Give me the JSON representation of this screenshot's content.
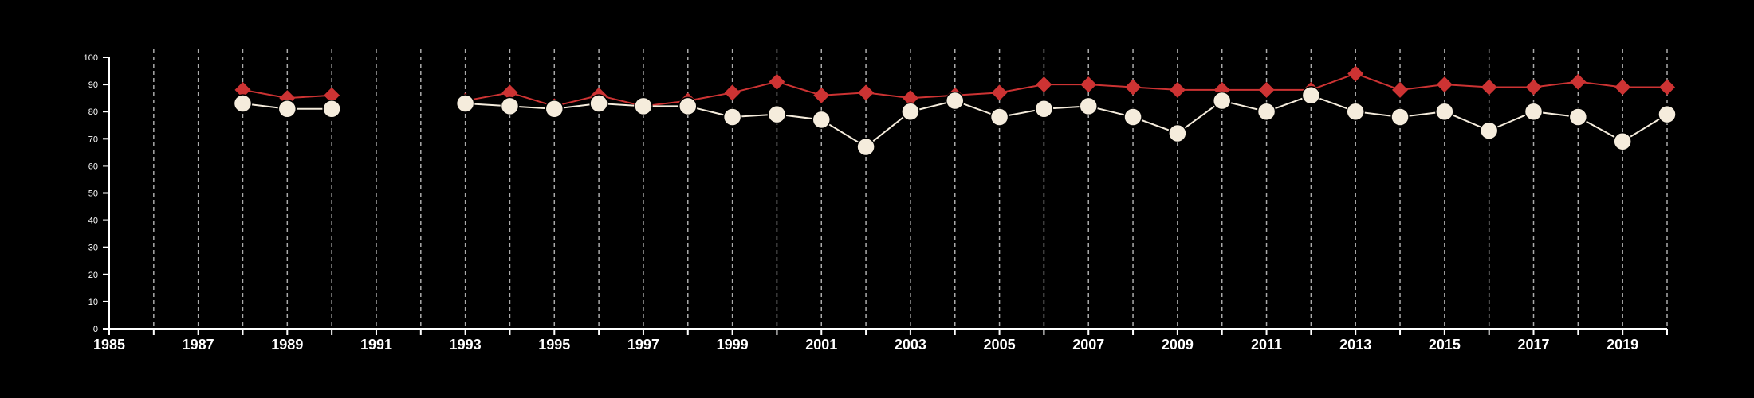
{
  "chart_data": {
    "type": "line",
    "title": "",
    "xlabel": "",
    "ylabel": "",
    "xlim": [
      1985,
      2020
    ],
    "ylim": [
      0,
      100
    ],
    "x_ticks": [
      "1985",
      "1987",
      "1989",
      "1991",
      "1993",
      "1995",
      "1997",
      "1999",
      "2001",
      "2003",
      "2005",
      "2007",
      "2009",
      "2011",
      "2013",
      "2015",
      "2017",
      "2019"
    ],
    "y_ticks": [
      "0",
      "10",
      "20",
      "30",
      "40",
      "50",
      "60",
      "70",
      "80",
      "90",
      "100"
    ],
    "vertical_grid": "dashed, every year",
    "legend": "none",
    "series": [
      {
        "color": "#cd3333",
        "marker": "diamond",
        "x": [
          1988,
          1989,
          1990,
          1993,
          1994,
          1995,
          1996,
          1997,
          1998,
          1999,
          2000,
          2001,
          2002,
          2003,
          2004,
          2005,
          2006,
          2007,
          2008,
          2009,
          2010,
          2011,
          2012,
          2013,
          2014,
          2015,
          2016,
          2017,
          2018,
          2019,
          2020
        ],
        "y": [
          88,
          85,
          86,
          84,
          87,
          82,
          86,
          82,
          84,
          87,
          91,
          86,
          87,
          85,
          86,
          87,
          90,
          90,
          89,
          88,
          88,
          88,
          88,
          94,
          88,
          90,
          89,
          89,
          91,
          89,
          89
        ]
      },
      {
        "color": "#f5ecdc",
        "marker": "circle",
        "x": [
          1988,
          1989,
          1990,
          1993,
          1994,
          1995,
          1996,
          1997,
          1998,
          1999,
          2000,
          2001,
          2002,
          2003,
          2004,
          2005,
          2006,
          2007,
          2008,
          2009,
          2010,
          2011,
          2012,
          2013,
          2014,
          2015,
          2016,
          2017,
          2018,
          2019,
          2020
        ],
        "y": [
          83,
          81,
          81,
          83,
          82,
          81,
          83,
          82,
          82,
          78,
          79,
          77,
          67,
          80,
          84,
          78,
          81,
          82,
          78,
          72,
          84,
          80,
          86,
          80,
          78,
          80,
          73,
          80,
          78,
          69,
          79
        ]
      }
    ],
    "colors": {
      "background": "#000000",
      "axis": "#ffffff",
      "grid": "#aaaaaa"
    }
  }
}
